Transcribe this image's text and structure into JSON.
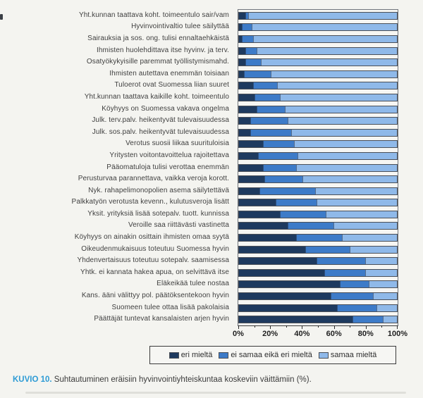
{
  "figure": {
    "caption_label": "KUVIO 10.",
    "caption_text": " Suhtautuminen eräisiin hyvinvointiyhteiskuntaa koskeviin väittämiin (%).",
    "caption_label_color": "#2d9bd5"
  },
  "chart_data": {
    "type": "bar",
    "orientation": "horizontal",
    "stacked": true,
    "unit": "%",
    "xlim": [
      0,
      100
    ],
    "x_ticks": [
      "0%",
      "20%",
      "40%",
      "60%",
      "80%",
      "100%"
    ],
    "minor_tick_step": 10,
    "legend_position": "bottom",
    "categories": [
      "Yht.kunnan taattava koht. toimeentulo sair/vam",
      "Hyvinvointivaltio tulee säilyttää",
      "Sairauksia ja sos. ong. tulisi ennaltaehkäistä",
      "Ihmisten huolehdittava itse hyvinv. ja terv.",
      "Osatyökykyisille paremmat työllistymismahd.",
      "Ihmisten autettava enemmän toisiaan",
      "Tuloerot ovat Suomessa liian suuret",
      "Yht.kunnan taattava kaikille koht. toimeentulo",
      "Köyhyys on Suomessa vakava ongelma",
      "Julk. terv.palv. heikentyvät tulevaisuudessa",
      "Julk. sos.palv. heikentyvät tulevaisuudessa",
      "Verotus suosii liikaa suurituloisia",
      "Yritysten voitontavoittelua rajoitettava",
      "Pääomatuloja tulisi verottaa enemmän",
      "Perusturvaa parannettava, vaikka veroja korott.",
      "Nyk. rahapelimonopolien asema säilytettävä",
      "Palkkatyön verotusta kevenn., kulutusveroja lisätt",
      "Yksit. yrityksiä lisää sotepalv. tuott. kunnissa",
      "Veroille saa riittävästi vastinetta",
      "Köyhyys on ainakin osittain ihmisten omaa syytä",
      "Oikeudenmukaisuus toteutuu Suomessa hyvin",
      "Yhdenvertaisuus toteutuu sotepalv. saamisessa",
      "Yhtk. ei kannata hakea apua, on selvittävä itse",
      "Eläkeikää tulee nostaa",
      "Kans. ääni välittyy pol. päätöksentekoon hyvin",
      "Suomeen tulee ottaa lisää pakolaisia",
      "Päättäjät tuntevat kansalaisten arjen hyvin"
    ],
    "series": [
      {
        "name": "eri mieltä",
        "color": "#1e3a5f",
        "values": [
          4,
          2,
          2,
          4,
          4,
          3,
          9,
          10,
          11,
          7,
          7,
          15,
          12,
          15,
          16,
          13,
          23,
          26,
          31,
          36,
          42,
          49,
          54,
          64,
          58,
          62,
          72
        ]
      },
      {
        "name": "ei samaa eikä eri mieltä",
        "color": "#3d7bc8",
        "values": [
          2,
          6,
          7,
          7,
          10,
          17,
          15,
          16,
          18,
          24,
          26,
          20,
          25,
          21,
          24,
          35,
          26,
          29,
          29,
          29,
          28,
          31,
          26,
          18,
          27,
          25,
          19
        ]
      },
      {
        "name": "samaa mieltä",
        "color": "#8fb9e9",
        "values": [
          94,
          92,
          91,
          89,
          86,
          80,
          76,
          74,
          71,
          69,
          67,
          65,
          63,
          64,
          60,
          52,
          51,
          45,
          40,
          35,
          30,
          20,
          20,
          18,
          15,
          13,
          9
        ]
      }
    ]
  }
}
